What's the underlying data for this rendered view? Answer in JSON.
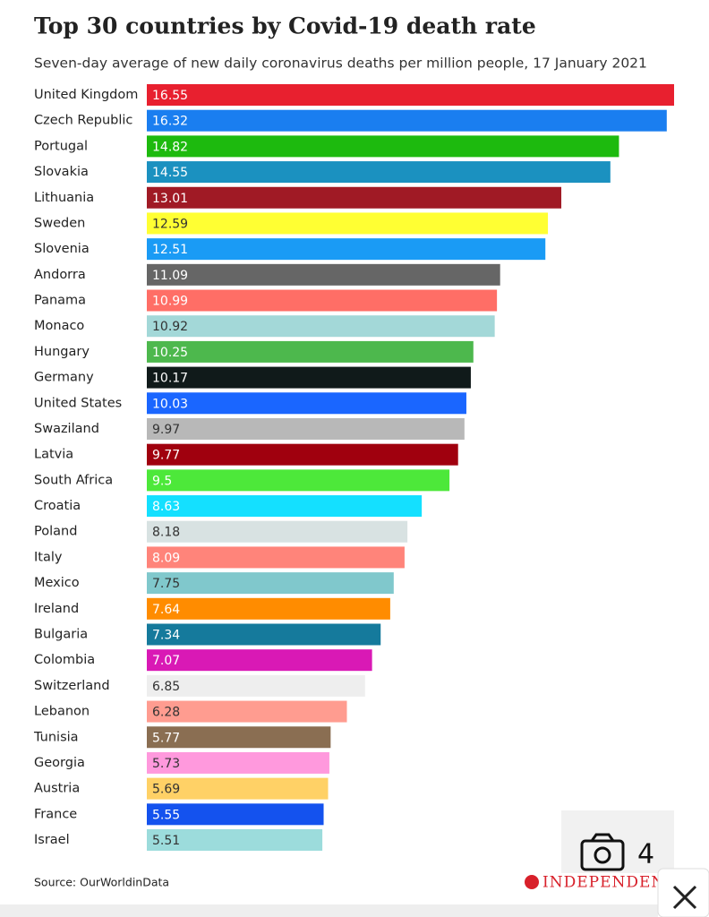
{
  "chart_data": {
    "type": "bar",
    "title": "Top 30 countries by Covid-19 death rate",
    "subtitle": "Seven-day average of new daily coronavirus deaths per million people, 17 January 2021",
    "categories": [
      "United Kingdom",
      "Czech Republic",
      "Portugal",
      "Slovakia",
      "Lithuania",
      "Sweden",
      "Slovenia",
      "Andorra",
      "Panama",
      "Monaco",
      "Hungary",
      "Germany",
      "United States",
      "Swaziland",
      "Latvia",
      "South Africa",
      "Croatia",
      "Poland",
      "Italy",
      "Mexico",
      "Ireland",
      "Bulgaria",
      "Colombia",
      "Switzerland",
      "Lebanon",
      "Tunisia",
      "Georgia",
      "Austria",
      "France",
      "Israel"
    ],
    "values": [
      16.55,
      16.32,
      14.82,
      14.55,
      13.01,
      12.59,
      12.51,
      11.09,
      10.99,
      10.92,
      10.25,
      10.17,
      10.03,
      9.97,
      9.77,
      9.5,
      8.63,
      8.18,
      8.09,
      7.75,
      7.64,
      7.34,
      7.07,
      6.85,
      6.28,
      5.77,
      5.73,
      5.69,
      5.55,
      5.51
    ],
    "colors": [
      "#e8202f",
      "#1a7ef0",
      "#1dba0e",
      "#1b91c0",
      "#a01a25",
      "#ffff33",
      "#1a9bf5",
      "#666666",
      "#ff6e66",
      "#a3d8d8",
      "#4db84d",
      "#101a1a",
      "#1a66ff",
      "#b8b8b8",
      "#a0000e",
      "#4de83a",
      "#14e0ff",
      "#d8e2e2",
      "#ff847a",
      "#80c8cc",
      "#ff8c00",
      "#157a9c",
      "#d919b5",
      "#eeeeee",
      "#ff9c90",
      "#8a6e52",
      "#ff99dd",
      "#ffd166",
      "#1452ee",
      "#9cdcdc"
    ],
    "source": "Source: OurWorldinData",
    "logo": "INDEPENDENT"
  },
  "overlay": {
    "photo_count": "4"
  }
}
